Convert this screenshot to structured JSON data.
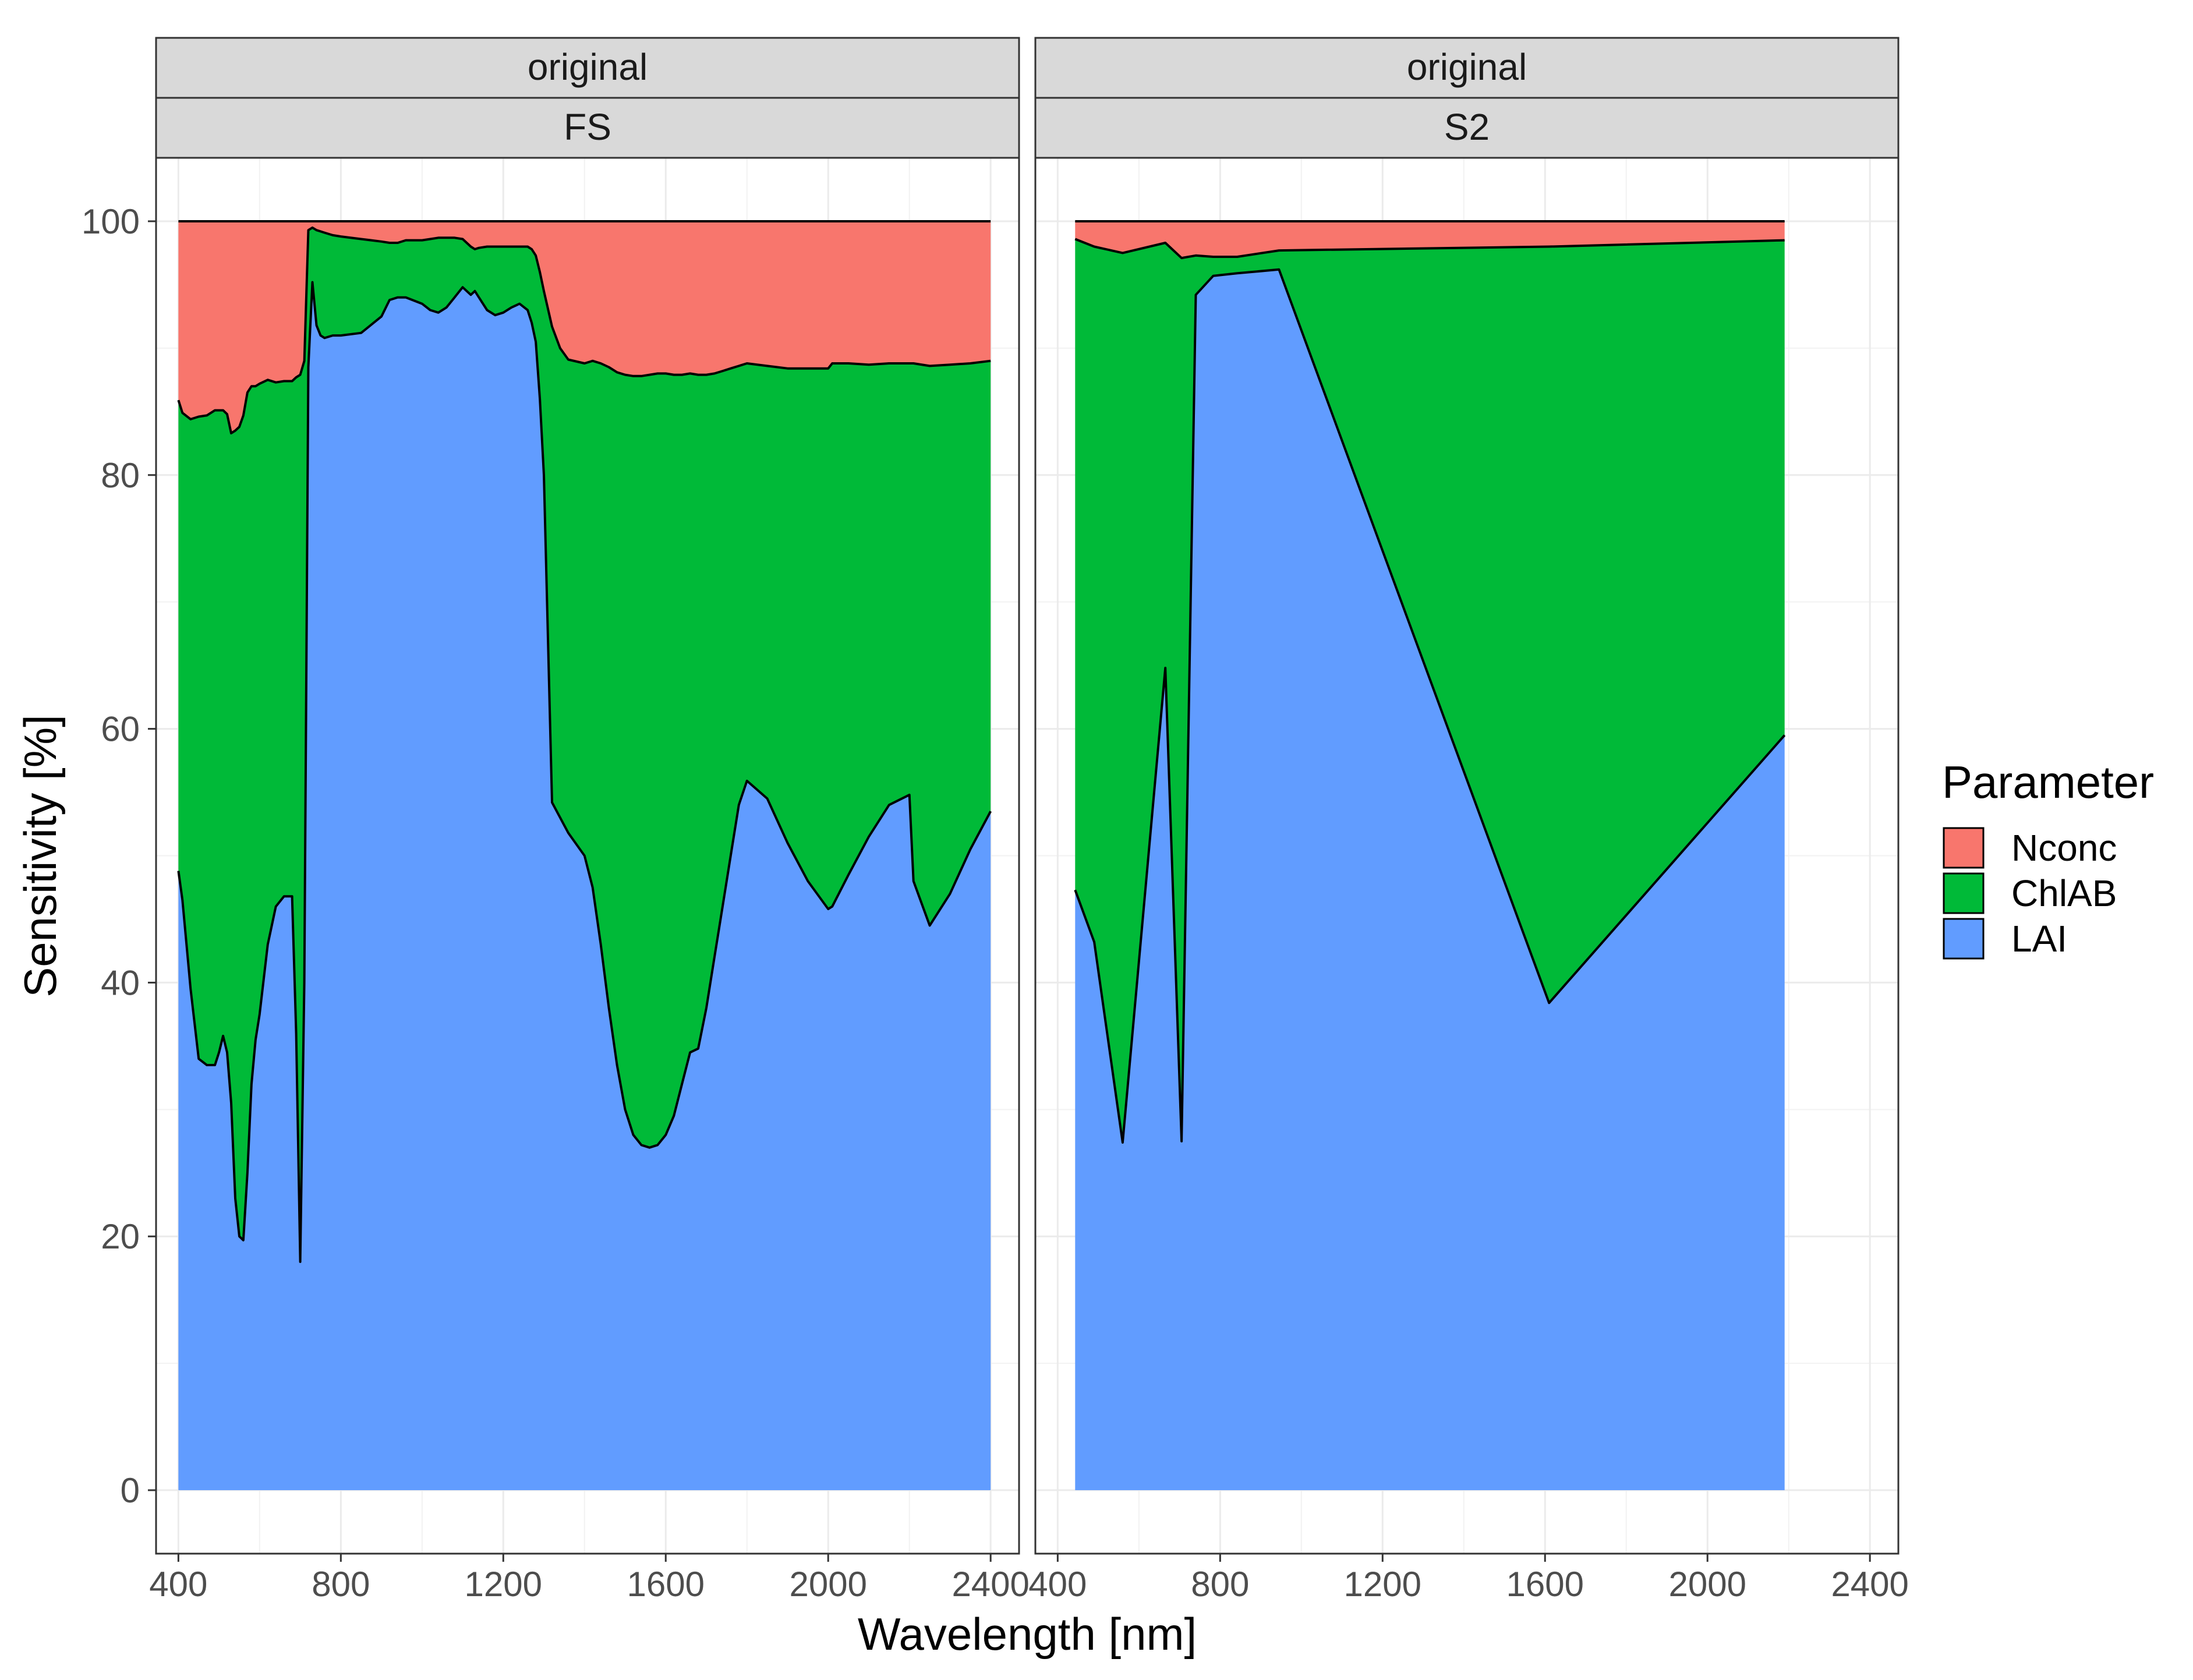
{
  "chart_data": {
    "type": "area",
    "stacked": true,
    "ylabel": "Sensitivity [%]",
    "xlabel": "Wavelength [nm]",
    "xlim": [
      345,
      2470
    ],
    "ylim": [
      -5,
      105
    ],
    "x_ticks": [
      400,
      800,
      1200,
      1600,
      2000,
      2400
    ],
    "y_ticks": [
      0,
      20,
      40,
      60,
      80,
      100
    ],
    "legend": {
      "title": "Parameter",
      "position": "right",
      "items": [
        {
          "name": "Nconc",
          "color": "#F8766D"
        },
        {
          "name": "ChlAB",
          "color": "#00BA38"
        },
        {
          "name": "LAI",
          "color": "#619CFF"
        }
      ]
    },
    "grid": true,
    "panels": [
      {
        "strip_top": "original",
        "strip_bottom": "FS",
        "x": [
          400,
          410,
          430,
          450,
          470,
          490,
          500,
          510,
          520,
          530,
          540,
          550,
          560,
          570,
          580,
          590,
          600,
          620,
          640,
          660,
          680,
          690,
          700,
          710,
          720,
          730,
          740,
          750,
          760,
          780,
          800,
          850,
          900,
          920,
          940,
          960,
          1000,
          1020,
          1040,
          1060,
          1080,
          1100,
          1120,
          1130,
          1140,
          1160,
          1180,
          1200,
          1220,
          1240,
          1260,
          1270,
          1280,
          1290,
          1300,
          1320,
          1340,
          1360,
          1400,
          1420,
          1440,
          1460,
          1480,
          1500,
          1520,
          1540,
          1560,
          1580,
          1600,
          1620,
          1640,
          1660,
          1680,
          1700,
          1720,
          1740,
          1760,
          1780,
          1800,
          1850,
          1900,
          1950,
          2000,
          2010,
          2050,
          2100,
          2150,
          2200,
          2210,
          2250,
          2300,
          2350,
          2400
        ],
        "series": [
          {
            "name": "LAI",
            "values": [
              48.8,
              46.5,
              39.5,
              34.0,
              33.5,
              33.5,
              34.5,
              35.8,
              34.5,
              30.5,
              23.0,
              20.0,
              19.7,
              25.0,
              32.0,
              35.5,
              37.5,
              43.0,
              46.0,
              46.8,
              46.8,
              36.0,
              18.0,
              40.0,
              88.5,
              95.2,
              91.8,
              91.0,
              90.8,
              91.0,
              91.0,
              91.2,
              92.5,
              93.8,
              94.0,
              94.0,
              93.5,
              93.0,
              92.8,
              93.2,
              94.0,
              94.8,
              94.2,
              94.5,
              94.0,
              93.0,
              92.6,
              92.8,
              93.2,
              93.5,
              93.0,
              92.0,
              90.5,
              86.0,
              80.0,
              54.2,
              53.0,
              51.8,
              50.0,
              47.5,
              43.0,
              38.0,
              33.5,
              30.0,
              28.0,
              27.2,
              27.0,
              27.2,
              28.0,
              29.5,
              32.0,
              34.5,
              34.8,
              38.0,
              42.0,
              46.0,
              50.0,
              54.0,
              55.9,
              54.5,
              51.0,
              48.0,
              45.8,
              46.0,
              48.5,
              51.5,
              54.0,
              54.8,
              48.0,
              44.5,
              47.0,
              50.5,
              53.5
            ]
          },
          {
            "name": "ChlAB",
            "values": [
              37.1,
              38.4,
              44.9,
              50.6,
              51.2,
              51.6,
              50.6,
              49.3,
              50.3,
              52.8,
              60.5,
              63.8,
              65.0,
              61.5,
              55.0,
              51.5,
              49.7,
              44.5,
              41.3,
              40.6,
              40.6,
              51.7,
              69.9,
              49.0,
              10.8,
              4.3,
              7.5,
              8.2,
              8.3,
              7.9,
              7.8,
              7.4,
              5.9,
              4.5,
              4.3,
              4.5,
              5.0,
              5.6,
              5.9,
              5.5,
              4.7,
              3.8,
              3.8,
              3.3,
              3.9,
              5.0,
              5.4,
              5.2,
              4.8,
              4.5,
              5.0,
              5.8,
              6.8,
              10.0,
              14.5,
              37.5,
              37.0,
              37.3,
              38.8,
              41.5,
              45.8,
              50.5,
              54.6,
              57.9,
              59.8,
              60.6,
              60.9,
              60.8,
              60.0,
              58.4,
              55.9,
              53.5,
              53.1,
              49.9,
              46.0,
              42.2,
              38.4,
              34.6,
              32.9,
              34.1,
              37.4,
              40.4,
              42.6,
              42.8,
              40.3,
              37.2,
              34.8,
              34.0,
              40.8,
              44.1,
              41.7,
              38.3,
              35.5
            ]
          },
          {
            "name": "Nconc",
            "values": [
              14.1,
              15.1,
              15.6,
              15.4,
              15.3,
              14.9,
              14.9,
              14.9,
              15.2,
              16.7,
              16.5,
              16.2,
              15.3,
              13.5,
              13.0,
              13.0,
              12.8,
              12.5,
              12.7,
              12.6,
              12.6,
              12.3,
              12.1,
              11.0,
              0.7,
              0.5,
              0.7,
              0.8,
              0.9,
              1.1,
              1.2,
              1.4,
              1.6,
              1.7,
              1.7,
              1.5,
              1.5,
              1.4,
              1.3,
              1.3,
              1.3,
              1.4,
              2.0,
              2.2,
              2.1,
              2.0,
              2.0,
              2.0,
              2.0,
              2.0,
              2.0,
              2.2,
              2.7,
              4.0,
              5.5,
              8.3,
              10.0,
              10.9,
              11.2,
              11.0,
              11.2,
              11.5,
              11.9,
              12.1,
              12.2,
              12.2,
              12.1,
              12.0,
              12.0,
              12.1,
              12.1,
              12.0,
              12.1,
              12.1,
              12.0,
              11.8,
              11.6,
              11.4,
              11.2,
              11.4,
              11.6,
              11.6,
              11.6,
              11.2,
              11.2,
              11.3,
              11.2,
              11.2,
              11.2,
              11.4,
              11.3,
              11.2,
              11.0
            ]
          }
        ]
      },
      {
        "strip_top": "original",
        "strip_bottom": "S2",
        "x": [
          443,
          490,
          560,
          665,
          705,
          740,
          783,
          842,
          945,
          1610,
          2190
        ],
        "series": [
          {
            "name": "LAI",
            "values": [
              47.3,
              43.2,
              27.4,
              64.8,
              27.5,
              94.2,
              95.7,
              95.9,
              96.2,
              38.4,
              59.5
            ]
          },
          {
            "name": "ChlAB",
            "values": [
              51.3,
              54.8,
              70.1,
              33.5,
              69.6,
              3.1,
              1.5,
              1.3,
              1.5,
              59.6,
              39.0
            ]
          },
          {
            "name": "Nconc",
            "values": [
              1.4,
              2.0,
              2.5,
              1.7,
              2.9,
              2.7,
              2.8,
              2.8,
              2.3,
              2.0,
              1.5
            ]
          }
        ]
      }
    ]
  }
}
